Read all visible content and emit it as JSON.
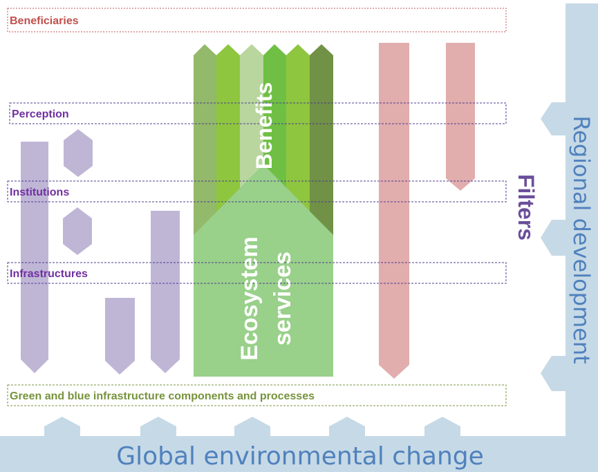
{
  "labels": {
    "beneficiaries": "Beneficiaries",
    "perception": "Perception",
    "institutions": "Institutions",
    "infrastructures": "Infrastructures",
    "green_blue": "Green and blue infrastructure components and processes",
    "filters": "Filters",
    "regional_development": "Regional development",
    "global_change": "Global environmental change",
    "benefits": "Benefits",
    "ecosystem_line1": "Ecosystem",
    "ecosystem_line2": "services"
  },
  "colors": {
    "beneficiaries_red": "#c0504d",
    "filter_purple": "#7030a0",
    "green_text": "#77933c",
    "frame_blue": "#c6d9e6",
    "frame_text_blue": "#4f81bd",
    "lavender": "#bfb6d6",
    "pink": "#e1adad",
    "eco_green": "#8fcc7c",
    "filters_label": "#6b4f9a"
  }
}
